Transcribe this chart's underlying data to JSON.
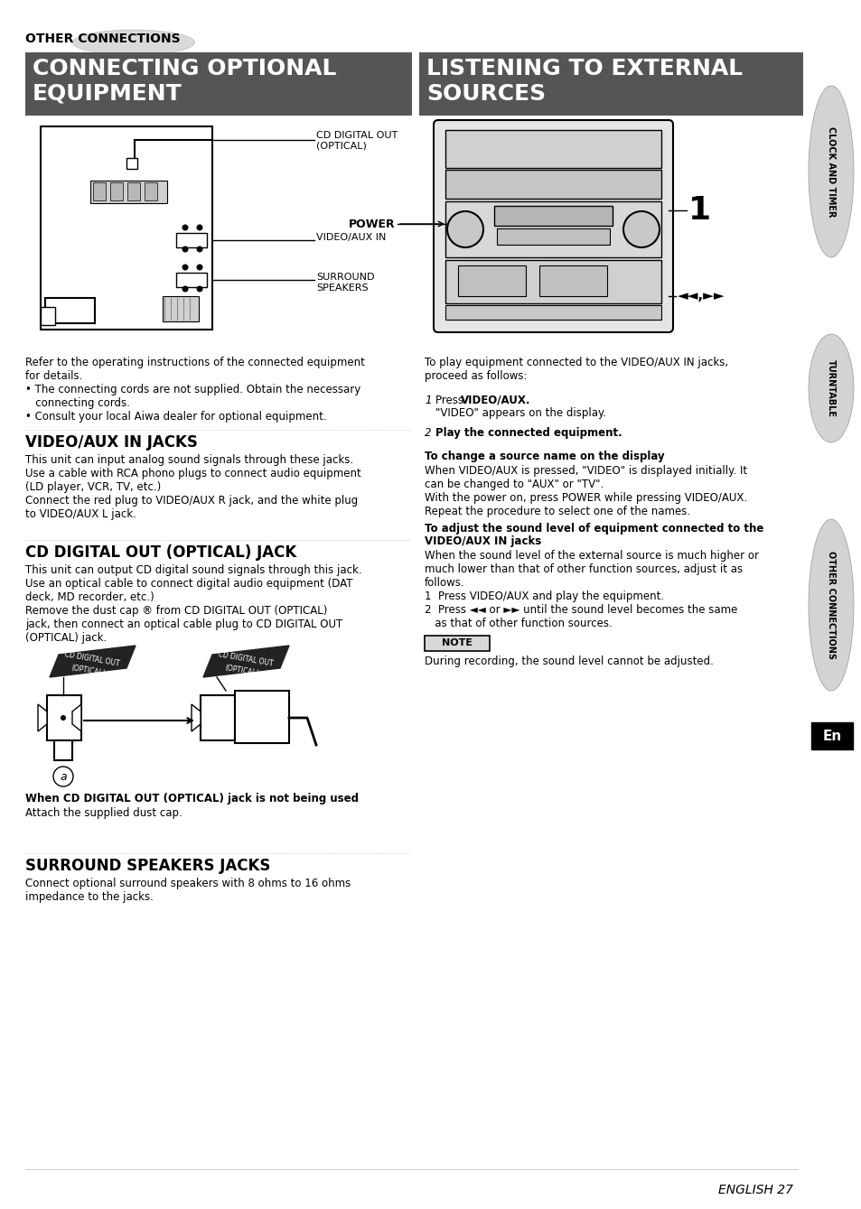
{
  "bg": "#ffffff",
  "header_label": "OTHER CONNECTIONS",
  "left_banner": "CONNECTING OPTIONAL\nEQUIPMENT",
  "right_banner": "LISTENING TO EXTERNAL\nSOURCES",
  "sidebar1": "CLOCK AND TIMER",
  "sidebar2": "TURNTABLE",
  "sidebar3": "OTHER CONNECTIONS",
  "en_label": "En",
  "left_intro": "Refer to the operating instructions of the connected equipment\nfor details.\n• The connecting cords are not supplied. Obtain the necessary\n   connecting cords.\n• Consult your local Aiwa dealer for optional equipment.",
  "s1_title": "VIDEO/AUX IN JACKS",
  "s1_body": "This unit can input analog sound signals through these jacks.\nUse a cable with RCA phono plugs to connect audio equipment\n(LD player, VCR, TV, etc.)\nConnect the red plug to VIDEO/AUX R jack, and the white plug\nto VIDEO/AUX L jack.",
  "s2_title": "CD DIGITAL OUT (OPTICAL) JACK",
  "s2_body": "This unit can output CD digital sound signals through this jack.\nUse an optical cable to connect digital audio equipment (DAT\ndeck, MD recorder, etc.)\nRemove the dust cap ® from CD DIGITAL OUT (OPTICAL)\njack, then connect an optical cable plug to CD DIGITAL OUT\n(OPTICAL) jack.",
  "when_cd": "When CD DIGITAL OUT (OPTICAL) jack is not being used",
  "when_cd_body": "Attach the supplied dust cap.",
  "s3_title": "SURROUND SPEAKERS JACKS",
  "s3_body": "Connect optional surround speakers with 8 ohms to 16 ohms\nimpedance to the jacks.",
  "r_intro": "To play equipment connected to the VIDEO/AUX IN jacks,\nproceed as follows:",
  "r_step1_label": "1",
  "r_step1_bold": "Press VIDEO/AUX.",
  "r_step1_body": "\"VIDEO\" appears on the display.",
  "r_step2_label": "2",
  "r_step2_bold": "Play the connected equipment.",
  "r_sub1_title": "To change a source name on the display",
  "r_sub1_body": "When VIDEO/AUX is pressed, \"VIDEO\" is displayed initially. It\ncan be changed to \"AUX\" or \"TV\".\nWith the power on, press POWER while pressing VIDEO/AUX.\nRepeat the procedure to select one of the names.",
  "r_sub2_title1": "To adjust the sound level of equipment connected to the",
  "r_sub2_title2": "VIDEO/AUX IN jacks",
  "r_sub2_body": "When the sound level of the external source is much higher or\nmuch lower than that of other function sources, adjust it as\nfollows.\n1  Press VIDEO/AUX and play the equipment.\n2  Press ◄◄ or ►► until the sound level becomes the same\n   as that of other function sources.",
  "note_label": "NOTE",
  "note_body": "During recording, the sound level cannot be adjusted.",
  "footer": "ENGLISH 27",
  "diag_cd": "CD DIGITAL OUT\n(OPTICAL)",
  "diag_vid": "VIDEO/AUX IN",
  "diag_sur": "SURROUND\nSPEAKERS",
  "power_label": "POWER",
  "num1_label": "1",
  "arrows_label": "◄◄,►►"
}
